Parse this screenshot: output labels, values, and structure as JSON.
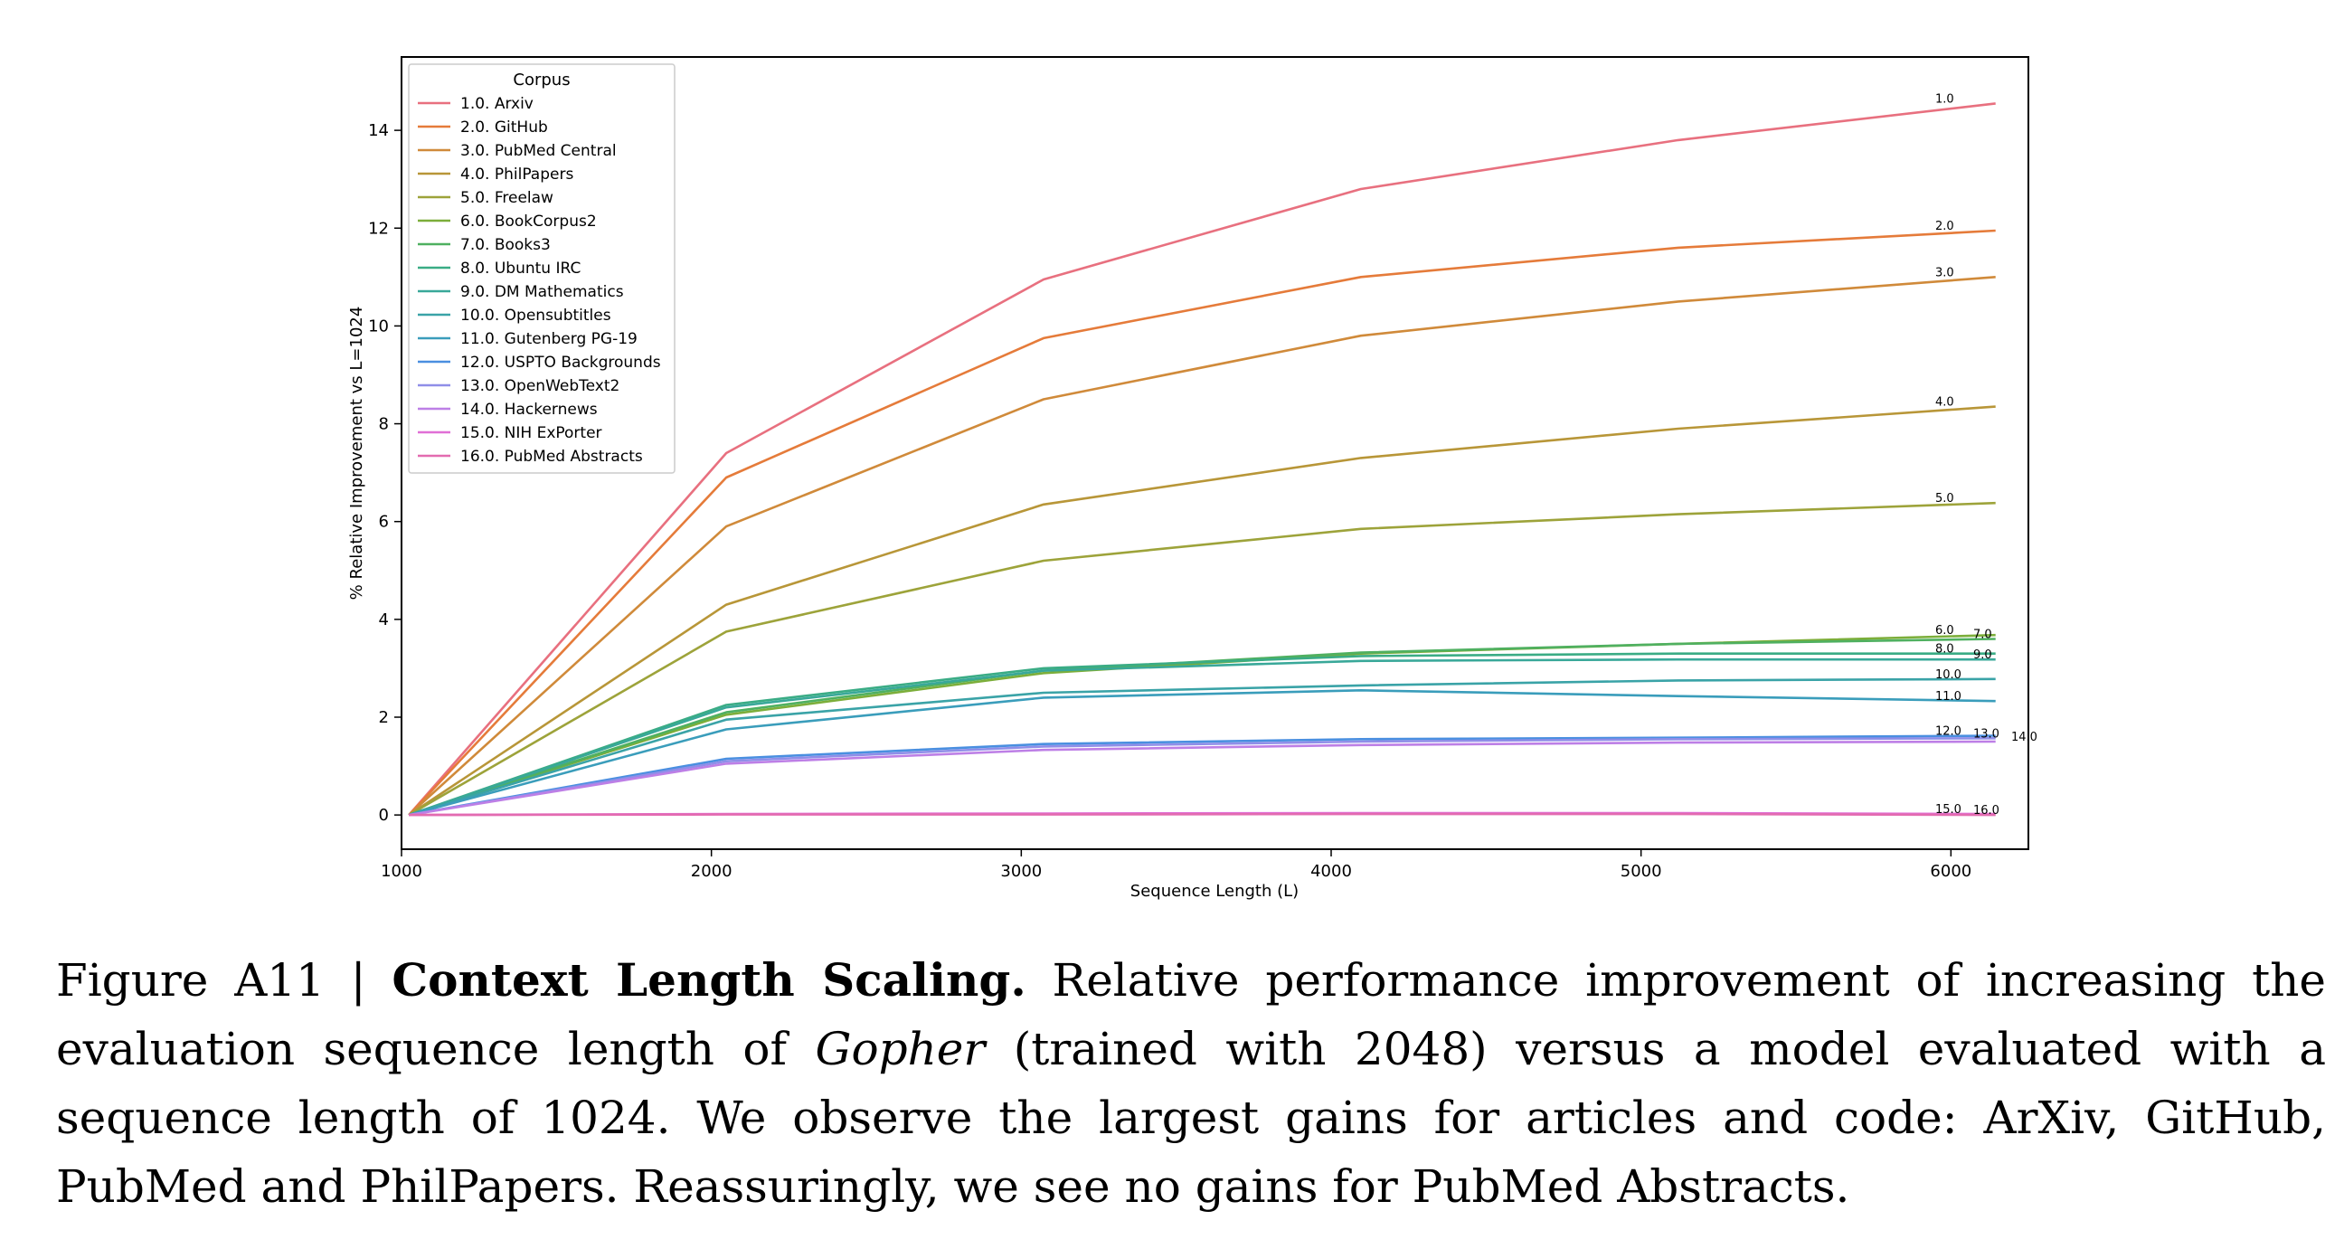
{
  "chart_data": {
    "type": "line",
    "title": "",
    "xlabel": "Sequence Length (L)",
    "ylabel": "% Relative Improvement vs L=1024",
    "xlim": [
      1000,
      6250
    ],
    "ylim": [
      -0.7,
      15.5
    ],
    "xticks": [
      1000,
      2000,
      3000,
      4000,
      5000,
      6000
    ],
    "yticks": [
      0,
      2,
      4,
      6,
      8,
      10,
      12,
      14
    ],
    "grid": false,
    "legend_title": "Corpus",
    "legend_position": "top-left",
    "x": [
      1024,
      2048,
      3072,
      4096,
      5120,
      6144
    ],
    "series": [
      {
        "name": "1.0. Arxiv",
        "end_label": "1.0",
        "color": "#e8707f",
        "values": [
          0,
          7.4,
          10.95,
          12.8,
          13.8,
          14.55
        ]
      },
      {
        "name": "2.0. GitHub",
        "end_label": "2.0",
        "color": "#e57b3a",
        "values": [
          0,
          6.9,
          9.75,
          11.0,
          11.6,
          11.95
        ]
      },
      {
        "name": "3.0. PubMed Central",
        "end_label": "3.0",
        "color": "#d08a3a",
        "values": [
          0,
          5.9,
          8.5,
          9.8,
          10.5,
          11.0
        ]
      },
      {
        "name": "4.0. PhilPapers",
        "end_label": "4.0",
        "color": "#b89638",
        "values": [
          0,
          4.3,
          6.35,
          7.3,
          7.9,
          8.35
        ]
      },
      {
        "name": "5.0. Freelaw",
        "end_label": "5.0",
        "color": "#9da33a",
        "values": [
          0,
          3.75,
          5.2,
          5.85,
          6.15,
          6.38
        ]
      },
      {
        "name": "6.0. BookCorpus2",
        "end_label": "6.0",
        "color": "#7cae3a",
        "values": [
          0,
          2.05,
          2.9,
          3.3,
          3.5,
          3.68
        ]
      },
      {
        "name": "7.0. Books3",
        "end_label": "7.0",
        "color": "#4fb060",
        "values": [
          0,
          2.1,
          2.95,
          3.32,
          3.5,
          3.6
        ]
      },
      {
        "name": "8.0. Ubuntu IRC",
        "end_label": "8.0",
        "color": "#3aac85",
        "values": [
          0,
          2.25,
          3.0,
          3.25,
          3.3,
          3.3
        ]
      },
      {
        "name": "9.0. DM Mathematics",
        "end_label": "9.0",
        "color": "#39a899",
        "values": [
          0,
          2.2,
          2.95,
          3.15,
          3.18,
          3.18
        ]
      },
      {
        "name": "10.0. Opensubtitles",
        "end_label": "10.0",
        "color": "#3aa3a7",
        "values": [
          0,
          1.95,
          2.5,
          2.65,
          2.75,
          2.78
        ]
      },
      {
        "name": "11.0. Gutenberg PG-19",
        "end_label": "11.0",
        "color": "#3a9dbb",
        "values": [
          0,
          1.75,
          2.4,
          2.55,
          2.43,
          2.33
        ]
      },
      {
        "name": "12.0. USPTO Backgrounds",
        "end_label": "12.0",
        "color": "#4a8fe0",
        "values": [
          0,
          1.15,
          1.45,
          1.55,
          1.58,
          1.62
        ]
      },
      {
        "name": "13.0. OpenWebText2",
        "end_label": "13.0",
        "color": "#8f8ee8",
        "values": [
          0,
          1.1,
          1.4,
          1.5,
          1.55,
          1.57
        ]
      },
      {
        "name": "14.0. Hackernews",
        "end_label": "14.0",
        "color": "#bd7fe6",
        "values": [
          0,
          1.05,
          1.33,
          1.43,
          1.48,
          1.5
        ]
      },
      {
        "name": "15.0. NIH ExPorter",
        "end_label": "15.0",
        "color": "#e06fd6",
        "values": [
          0,
          0.02,
          0.03,
          0.04,
          0.04,
          0.02
        ]
      },
      {
        "name": "16.0. PubMed Abstracts",
        "end_label": "16.0",
        "color": "#e36bb0",
        "values": [
          0,
          0.01,
          0.01,
          0.02,
          0.02,
          0.0
        ]
      }
    ]
  },
  "caption": {
    "prefix": "Figure A11 | ",
    "bold": "Context Length Scaling.",
    "part1": " Relative performance improvement of increasing the evaluation sequence length of ",
    "italic": "Gopher",
    "part2": " (trained with 2048) versus a model evaluated with a sequence length of 1024. We observe the largest gains for articles and code: ArXiv, GitHub, PubMed and PhilPapers. Reassuringly, we see no gains for PubMed Abstracts."
  }
}
